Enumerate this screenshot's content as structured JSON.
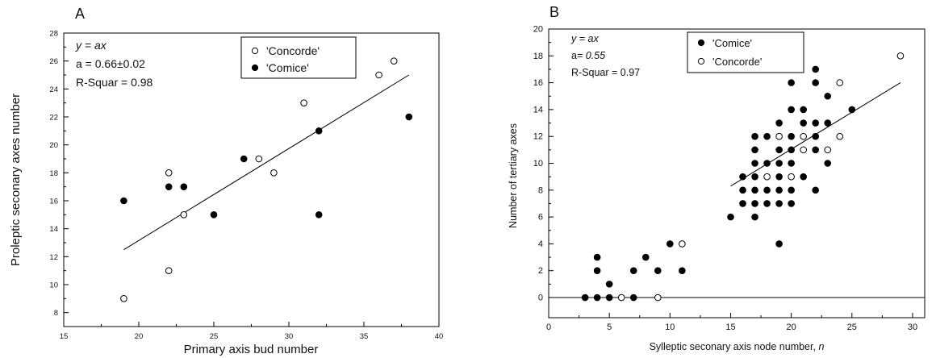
{
  "chart_data": [
    {
      "type": "scatter",
      "panel_label": "A",
      "xlabel": "Primary axis bud number",
      "ylabel": "Proleptic seconary axes number",
      "xlim": [
        15,
        40
      ],
      "ylim": [
        7,
        28
      ],
      "xticks": [
        15,
        20,
        25,
        30,
        35,
        40
      ],
      "yticks": [
        8,
        10,
        12,
        14,
        16,
        18,
        20,
        22,
        24,
        26,
        28
      ],
      "grid": false,
      "legend_position": "top-right",
      "annotations": [
        "y = ax",
        "a = 0.66±0.02",
        "R-Squar = 0.98"
      ],
      "series": [
        {
          "name": "'Concorde'",
          "marker": "open-circle",
          "points": [
            {
              "x": 19,
              "y": 9
            },
            {
              "x": 22,
              "y": 18
            },
            {
              "x": 22,
              "y": 11
            },
            {
              "x": 23,
              "y": 15
            },
            {
              "x": 28,
              "y": 19
            },
            {
              "x": 29,
              "y": 18
            },
            {
              "x": 31,
              "y": 23
            },
            {
              "x": 36,
              "y": 25
            },
            {
              "x": 37,
              "y": 26
            }
          ]
        },
        {
          "name": "'Comice'",
          "marker": "filled-circle",
          "points": [
            {
              "x": 19,
              "y": 16
            },
            {
              "x": 22,
              "y": 17
            },
            {
              "x": 23,
              "y": 17
            },
            {
              "x": 25,
              "y": 15
            },
            {
              "x": 27,
              "y": 19
            },
            {
              "x": 32,
              "y": 21
            },
            {
              "x": 32,
              "y": 15
            },
            {
              "x": 38,
              "y": 22
            }
          ]
        }
      ],
      "fit_line": {
        "x": [
          19,
          38
        ],
        "y": [
          12.5,
          25
        ]
      }
    },
    {
      "type": "scatter",
      "panel_label": "B",
      "xlabel": "Sylleptic seconary axis node number, n",
      "ylabel": "Number of tertiary axes",
      "xlim": [
        0,
        31
      ],
      "ylim": [
        -1.5,
        20
      ],
      "xticks": [
        0,
        5,
        10,
        15,
        20,
        25,
        30
      ],
      "yticks": [
        0,
        2,
        4,
        6,
        8,
        10,
        12,
        14,
        16,
        18,
        20
      ],
      "grid": false,
      "legend_position": "top-left",
      "annotations": [
        "y = ax",
        "a= 0.55",
        "R-Squar = 0.97"
      ],
      "series": [
        {
          "name": "'Comice'",
          "marker": "filled-circle",
          "points": [
            {
              "x": 3,
              "y": 0
            },
            {
              "x": 4,
              "y": 3
            },
            {
              "x": 4,
              "y": 2
            },
            {
              "x": 4,
              "y": 0
            },
            {
              "x": 5,
              "y": 1
            },
            {
              "x": 5,
              "y": 0
            },
            {
              "x": 7,
              "y": 2
            },
            {
              "x": 7,
              "y": 0
            },
            {
              "x": 8,
              "y": 3
            },
            {
              "x": 9,
              "y": 2
            },
            {
              "x": 10,
              "y": 4
            },
            {
              "x": 11,
              "y": 2
            },
            {
              "x": 15,
              "y": 6
            },
            {
              "x": 16,
              "y": 9
            },
            {
              "x": 16,
              "y": 8
            },
            {
              "x": 16,
              "y": 7
            },
            {
              "x": 17,
              "y": 12
            },
            {
              "x": 17,
              "y": 11
            },
            {
              "x": 17,
              "y": 10
            },
            {
              "x": 17,
              "y": 9
            },
            {
              "x": 17,
              "y": 8
            },
            {
              "x": 17,
              "y": 7
            },
            {
              "x": 17,
              "y": 6
            },
            {
              "x": 18,
              "y": 12
            },
            {
              "x": 18,
              "y": 10
            },
            {
              "x": 18,
              "y": 8
            },
            {
              "x": 18,
              "y": 7
            },
            {
              "x": 19,
              "y": 13
            },
            {
              "x": 19,
              "y": 11
            },
            {
              "x": 19,
              "y": 10
            },
            {
              "x": 19,
              "y": 9
            },
            {
              "x": 19,
              "y": 8
            },
            {
              "x": 19,
              "y": 7
            },
            {
              "x": 19,
              "y": 4
            },
            {
              "x": 20,
              "y": 16
            },
            {
              "x": 20,
              "y": 14
            },
            {
              "x": 20,
              "y": 12
            },
            {
              "x": 20,
              "y": 11
            },
            {
              "x": 20,
              "y": 10
            },
            {
              "x": 20,
              "y": 8
            },
            {
              "x": 20,
              "y": 7
            },
            {
              "x": 21,
              "y": 14
            },
            {
              "x": 21,
              "y": 13
            },
            {
              "x": 21,
              "y": 9
            },
            {
              "x": 22,
              "y": 17
            },
            {
              "x": 22,
              "y": 16
            },
            {
              "x": 22,
              "y": 13
            },
            {
              "x": 22,
              "y": 12
            },
            {
              "x": 22,
              "y": 11
            },
            {
              "x": 22,
              "y": 8
            },
            {
              "x": 23,
              "y": 15
            },
            {
              "x": 23,
              "y": 13
            },
            {
              "x": 23,
              "y": 10
            },
            {
              "x": 25,
              "y": 14
            }
          ]
        },
        {
          "name": "'Concorde'",
          "marker": "open-circle",
          "points": [
            {
              "x": 6,
              "y": 0
            },
            {
              "x": 9,
              "y": 0
            },
            {
              "x": 11,
              "y": 4
            },
            {
              "x": 18,
              "y": 9
            },
            {
              "x": 19,
              "y": 12
            },
            {
              "x": 20,
              "y": 9
            },
            {
              "x": 21,
              "y": 12
            },
            {
              "x": 21,
              "y": 11
            },
            {
              "x": 23,
              "y": 11
            },
            {
              "x": 24,
              "y": 16
            },
            {
              "x": 24,
              "y": 12
            },
            {
              "x": 29,
              "y": 18
            }
          ]
        }
      ],
      "fit_line": {
        "x": [
          15,
          29
        ],
        "y": [
          8.3,
          16
        ]
      },
      "zero_line": 0
    }
  ]
}
